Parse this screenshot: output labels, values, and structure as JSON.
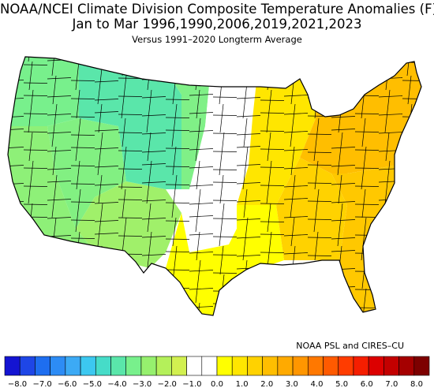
{
  "title_line1": "NOAA/NCEI Climate Division Composite Temperature Anomalies (F)",
  "title_line2": "Jan to Mar  1996,1990,2006,2019,2021,2023",
  "subtitle": "Versus 1991–2020 Longterm Average",
  "credit": "NOAA PSL and CIRES–CU",
  "colorbar": {
    "ticks": [
      "−8.0",
      "−7.0",
      "−6.0",
      "−5.0",
      "−4.0",
      "−3.0",
      "−2.0",
      "−1.0",
      "0.0",
      "1.0",
      "2.0",
      "3.0",
      "4.0",
      "5.0",
      "6.0",
      "7.0",
      "8.0"
    ],
    "colors": [
      "#1414d2",
      "#1e46e6",
      "#1e6ef0",
      "#2d8cf5",
      "#3caaf5",
      "#3cc8f0",
      "#46dcc8",
      "#5ae6aa",
      "#78f08c",
      "#96f06e",
      "#b4f05a",
      "#d2f050",
      "#ffffff",
      "#ffffff",
      "#ffff00",
      "#ffe600",
      "#ffd200",
      "#ffbe00",
      "#ffaa00",
      "#ff9600",
      "#ff7800",
      "#ff5a00",
      "#ff3c00",
      "#f51e00",
      "#dc0000",
      "#c30000",
      "#a50000",
      "#7d0000"
    ]
  },
  "regions": [
    {
      "name": "pacific-northwest",
      "color": "#78f08c"
    },
    {
      "name": "california",
      "color": "#8ef078"
    },
    {
      "name": "great-basin",
      "color": "#82f082"
    },
    {
      "name": "southwest",
      "color": "#a0f06a"
    },
    {
      "name": "rockies",
      "color": "#5ae6aa"
    },
    {
      "name": "northern-plains",
      "color": "#80f087"
    },
    {
      "name": "central-plains",
      "color": "#ffffff"
    },
    {
      "name": "texas",
      "color": "#ffff00"
    },
    {
      "name": "midwest",
      "color": "#ffe600"
    },
    {
      "name": "south",
      "color": "#ffd200"
    },
    {
      "name": "northeast",
      "color": "#ffbe00"
    },
    {
      "name": "southeast",
      "color": "#ffc800"
    }
  ]
}
